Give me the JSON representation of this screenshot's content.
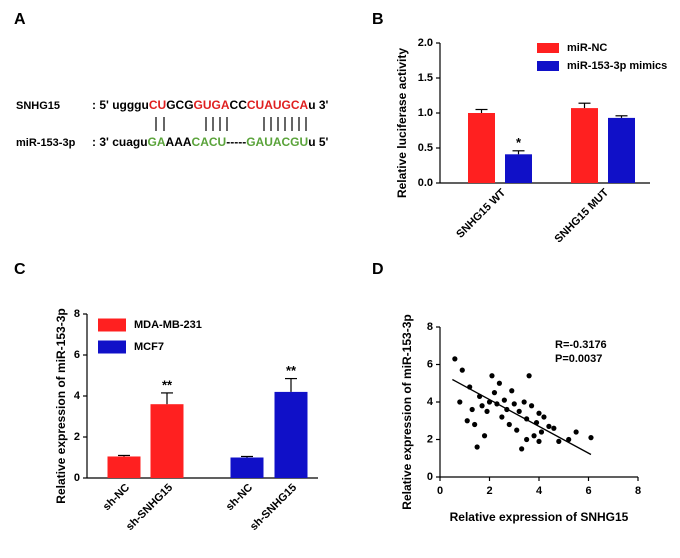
{
  "panel_labels": [
    "A",
    "B",
    "C",
    "D"
  ],
  "alignment": {
    "top": {
      "name": "SNHG15",
      "segments": [
        {
          "text": ": 5' ugggu",
          "color": "#000000"
        },
        {
          "text": "CU",
          "color": "#e02020"
        },
        {
          "text": "GCG",
          "color": "#000000"
        },
        {
          "text": "GUGA",
          "color": "#e02020"
        },
        {
          "text": "CC",
          "color": "#000000"
        },
        {
          "text": "CUAUGCA",
          "color": "#e02020"
        },
        {
          "text": "u 3'",
          "color": "#000000"
        }
      ]
    },
    "bottom": {
      "name": "miR-153-3p",
      "segments": [
        {
          "text": ": 3' cuagu",
          "color": "#000000"
        },
        {
          "text": "GA",
          "color": "#5aa33a"
        },
        {
          "text": "AAA",
          "color": "#000000"
        },
        {
          "text": "CACU",
          "color": "#5aa33a"
        },
        {
          "text": "-----",
          "color": "#000000"
        },
        {
          "text": "GAUACGU",
          "color": "#5aa33a"
        },
        {
          "text": "u 5'",
          "color": "#000000"
        }
      ]
    }
  },
  "chart_data": [
    {
      "type": "bar",
      "y_label": "Relative luciferase activity",
      "categories": [
        "SNHG15 WT",
        "SNHG15 MUT"
      ],
      "series": [
        {
          "name": "miR-NC",
          "color": "#ff2020",
          "values": [
            1.0,
            1.07
          ],
          "errors": [
            0.05,
            0.07
          ],
          "labels": [
            null,
            null
          ]
        },
        {
          "name": "miR-153-3p mimics",
          "color": "#1010c8",
          "values": [
            0.41,
            0.93
          ],
          "errors": [
            0.05,
            0.03
          ],
          "labels": [
            "*",
            null
          ]
        }
      ],
      "ylim": [
        0,
        2.0
      ],
      "yticks": [
        {
          "value": 0,
          "label": "0.0"
        },
        0.5,
        {
          "value": 1,
          "label": "1.0"
        },
        1.5,
        {
          "value": 2,
          "label": "2.0"
        }
      ],
      "legend": "top-right"
    },
    {
      "type": "bar",
      "y_label": "Relative expression of miR-153-3p",
      "categories": [
        "sh-NC",
        "sh-SNHG15",
        "sh-NC",
        "sh-SNHG15"
      ],
      "series": [
        {
          "name": "MDA-MB-231",
          "color": "#ff2020",
          "values": [
            1.05,
            3.6,
            null,
            null
          ],
          "errors": [
            0.05,
            0.55,
            null,
            null
          ],
          "labels": [
            null,
            "**",
            null,
            null
          ]
        },
        {
          "name": "MCF7",
          "color": "#1010c8",
          "values": [
            null,
            null,
            1.0,
            4.2
          ],
          "errors": [
            null,
            null,
            0.05,
            0.65
          ],
          "labels": [
            null,
            null,
            null,
            "**"
          ]
        }
      ],
      "ylim": [
        0,
        8
      ],
      "yticks": [
        0,
        2,
        4,
        6,
        8
      ],
      "legend": "top-left"
    },
    {
      "type": "scatter",
      "x_label": "Relative expression of SNHG15",
      "y_label": "Relative expression of miR-153-3p",
      "annotations": [
        "R=-0.3176",
        "P=0.0037"
      ],
      "x": [
        0.6,
        0.9,
        0.8,
        1.2,
        1.3,
        1.4,
        1.5,
        1.6,
        1.7,
        1.8,
        1.9,
        2.1,
        2.2,
        2.3,
        2.4,
        2.5,
        2.6,
        2.7,
        2.8,
        2.9,
        3.0,
        3.1,
        3.2,
        3.3,
        3.4,
        3.5,
        3.5,
        3.6,
        3.7,
        3.8,
        3.9,
        4.0,
        4.0,
        4.1,
        4.2,
        4.4,
        4.6,
        4.8,
        5.2,
        5.5,
        6.1,
        2.0,
        1.1
      ],
      "y": [
        6.3,
        5.7,
        4.0,
        4.8,
        3.6,
        2.8,
        1.6,
        4.3,
        3.8,
        2.2,
        3.5,
        5.4,
        4.5,
        3.9,
        5.0,
        3.2,
        4.1,
        3.6,
        2.8,
        4.6,
        3.9,
        2.5,
        3.5,
        1.5,
        4.0,
        3.1,
        2.0,
        5.4,
        3.8,
        2.2,
        2.9,
        3.4,
        1.9,
        2.4,
        3.2,
        2.7,
        2.6,
        1.9,
        2.0,
        2.4,
        2.1,
        4.0,
        3.0
      ],
      "fit": {
        "x": [
          0.5,
          6.1
        ],
        "y": [
          5.2,
          1.2
        ]
      },
      "color": "#000000",
      "xlim": [
        0,
        8
      ],
      "xticks": [
        0,
        2,
        4,
        6,
        8
      ],
      "ylim": [
        0,
        8
      ],
      "yticks": [
        0,
        2,
        4,
        6,
        8
      ]
    }
  ]
}
